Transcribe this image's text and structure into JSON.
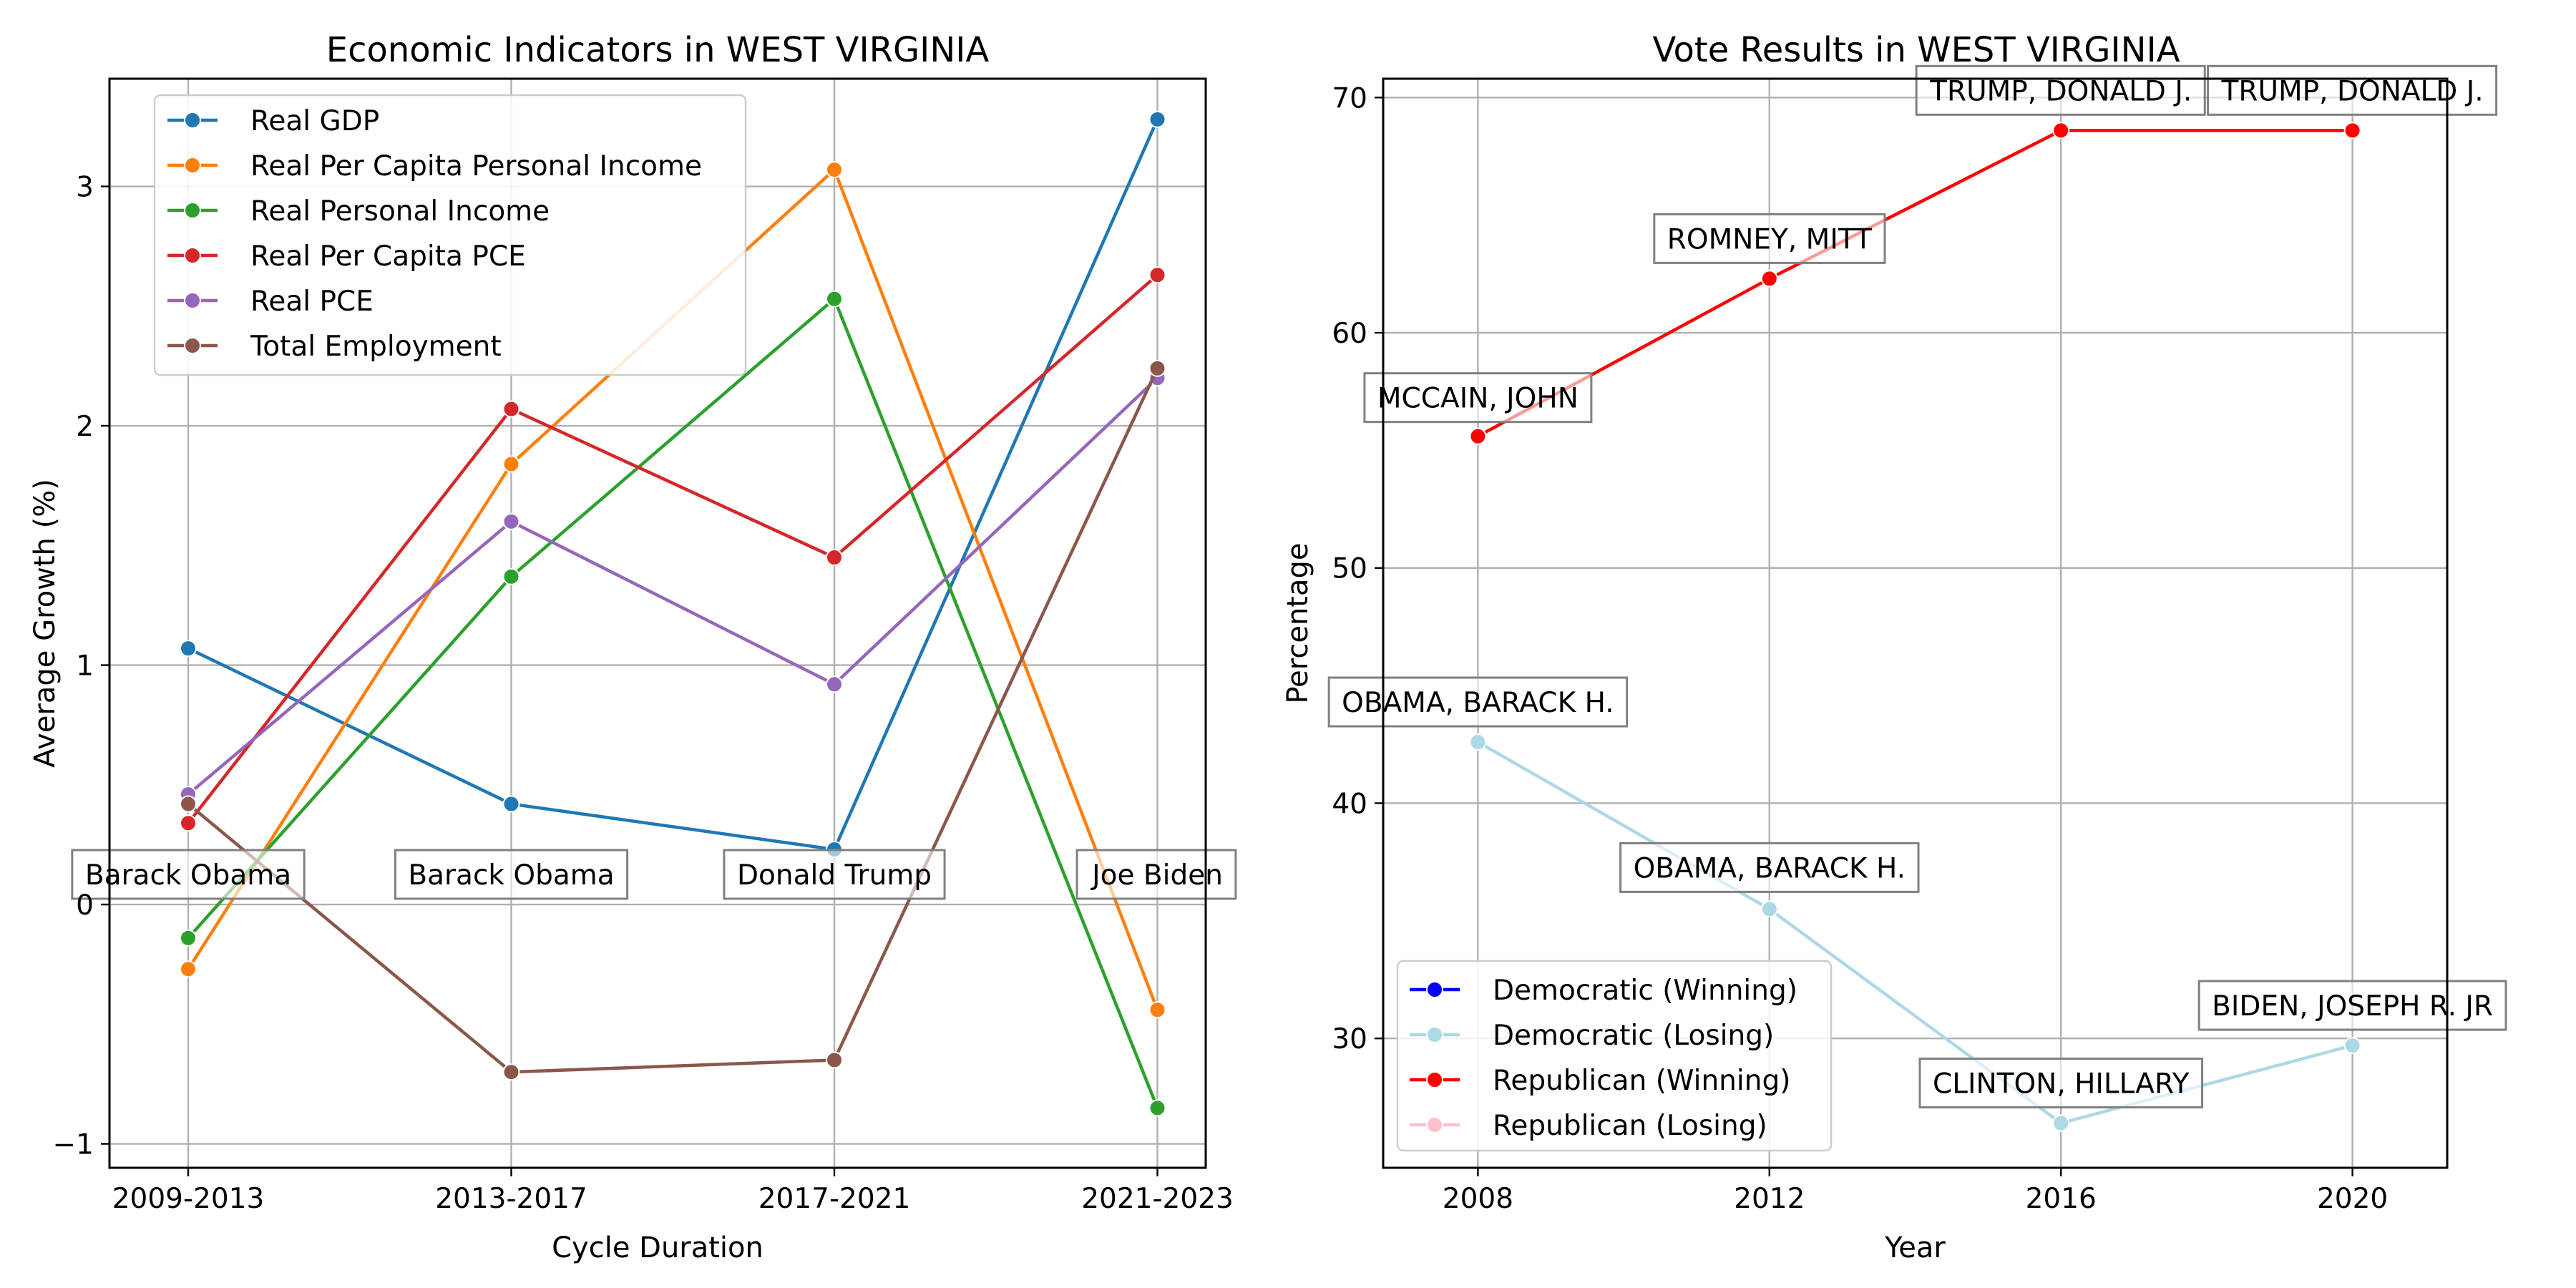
{
  "chart_data": [
    {
      "type": "line",
      "title": "Economic Indicators in WEST VIRGINIA",
      "xlabel": "Cycle Duration",
      "ylabel": "Average Growth (%)",
      "categories": [
        "2009-2013",
        "2013-2017",
        "2017-2021",
        "2021-2023"
      ],
      "y_ticks": [
        "−1",
        "0",
        "1",
        "2",
        "3"
      ],
      "ylim": [
        -1.1,
        3.45
      ],
      "grid": true,
      "legend_position": "top-left",
      "series": [
        {
          "name": "Real GDP",
          "color": "#1f77b4",
          "values": [
            1.07,
            0.42,
            0.23,
            3.28
          ]
        },
        {
          "name": "Real Per Capita Personal Income",
          "color": "#ff7f0e",
          "values": [
            -0.27,
            1.84,
            3.07,
            -0.44
          ]
        },
        {
          "name": "Real Personal Income",
          "color": "#2ca02c",
          "values": [
            -0.14,
            1.37,
            2.53,
            -0.85
          ]
        },
        {
          "name": "Real Per Capita PCE",
          "color": "#d62728",
          "values": [
            0.34,
            2.07,
            1.45,
            2.63
          ]
        },
        {
          "name": "Real PCE",
          "color": "#9467bd",
          "values": [
            0.46,
            1.6,
            0.92,
            2.2
          ]
        },
        {
          "name": "Total Employment",
          "color": "#8c564b",
          "values": [
            0.42,
            -0.7,
            -0.65,
            2.24
          ]
        }
      ],
      "annotations": [
        {
          "category": "2009-2013",
          "text": "Barack Obama"
        },
        {
          "category": "2013-2017",
          "text": "Barack Obama"
        },
        {
          "category": "2017-2021",
          "text": "Donald Trump"
        },
        {
          "category": "2021-2023",
          "text": "Joe Biden"
        }
      ]
    },
    {
      "type": "line",
      "title": "Vote Results in WEST VIRGINIA",
      "xlabel": "Year",
      "ylabel": "Percentage",
      "x": [
        2008,
        2012,
        2016,
        2020
      ],
      "x_ticks": [
        "2008",
        "2012",
        "2016",
        "2020"
      ],
      "y_ticks": [
        "30",
        "40",
        "50",
        "60",
        "70"
      ],
      "xlim": [
        2006.7,
        2021.3
      ],
      "ylim": [
        24.5,
        70.8
      ],
      "grid": true,
      "legend_position": "bottom-left",
      "legend": [
        {
          "label": "Democratic (Winning)",
          "color": "#0000ff"
        },
        {
          "label": "Democratic (Losing)",
          "color": "#add8e6"
        },
        {
          "label": "Republican (Winning)",
          "color": "#ff0000"
        },
        {
          "label": "Republican (Losing)",
          "color": "#ffc0cb"
        }
      ],
      "series": [
        {
          "name": "Republican (Winning)",
          "color": "#ff0000",
          "values": [
            55.6,
            62.3,
            68.6,
            68.6
          ],
          "labels": [
            "MCCAIN, JOHN",
            "ROMNEY, MITT",
            "TRUMP, DONALD J.",
            "TRUMP, DONALD J."
          ]
        },
        {
          "name": "Democratic (Losing)",
          "color": "#add8e6",
          "values": [
            42.6,
            35.5,
            26.4,
            29.7
          ],
          "labels": [
            "OBAMA, BARACK H.",
            "OBAMA, BARACK H.",
            "CLINTON, HILLARY",
            "BIDEN, JOSEPH R. JR"
          ]
        }
      ]
    }
  ]
}
